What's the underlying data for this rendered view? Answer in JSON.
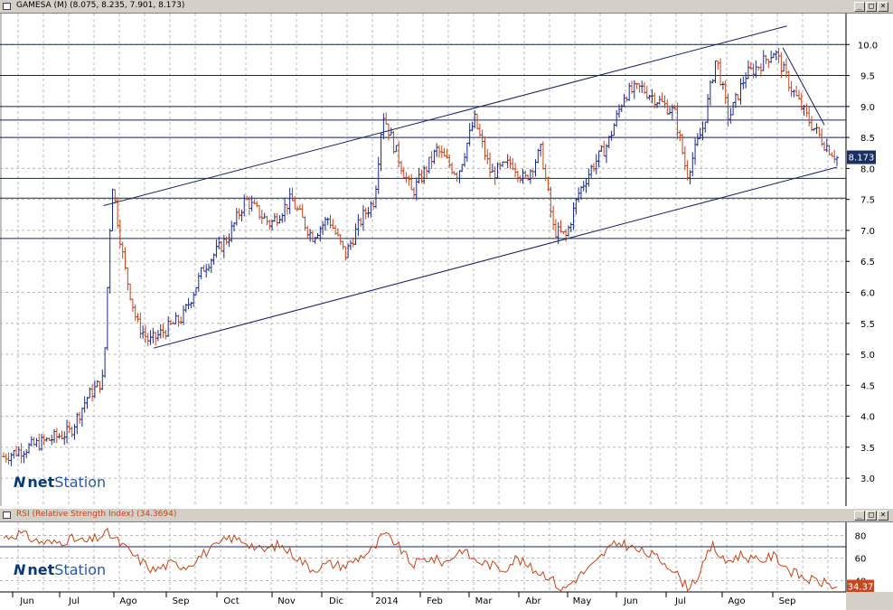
{
  "price_panel": {
    "title": "GAMESA (M) (8.075, 8.235, 7.901, 8.173)",
    "last_value_label": "8.173",
    "logo": {
      "brand_bold": "net",
      "brand_rest": "Station"
    }
  },
  "rsi_panel": {
    "title": "RSI (Relative Strength Index) (34.3694)",
    "last_value_label": "34.37",
    "logo": {
      "brand_bold": "net",
      "brand_rest": "Station"
    }
  },
  "window_buttons": {
    "minimize": "_",
    "restore": "□",
    "close": "×"
  },
  "colors": {
    "grid": "#b8b8b8",
    "bar_up": "#1a2a8a",
    "bar_down": "#c0441a",
    "hline": "#1a2060",
    "trendline": "#1a2060",
    "rsi_line": "#c0441a",
    "rsi_badge": "#c8481e",
    "price_badge": "#1a3060",
    "titlebar": "#d4d0c8"
  },
  "chart_data": [
    {
      "type": "bar",
      "subtype": "ohlc",
      "title": "GAMESA (M) (8.075, 8.235, 7.901, 8.173)",
      "x_ticks": [
        "Jun",
        "Jul",
        "Ago",
        "Sep",
        "Oct",
        "Nov",
        "Dic",
        "2014",
        "Feb",
        "Mar",
        "Abr",
        "May",
        "Jun",
        "Jul",
        "Ago",
        "Sep"
      ],
      "y_ticks": [
        "3.0",
        "3.5",
        "4.0",
        "4.5",
        "5.0",
        "5.5",
        "6.0",
        "6.5",
        "7.0",
        "7.5",
        "8.0",
        "8.5",
        "9.0",
        "9.5",
        "10.0"
      ],
      "ylim": [
        2.55,
        10.5
      ],
      "grid": true,
      "last": {
        "open": 8.075,
        "high": 8.235,
        "low": 7.901,
        "close": 8.173
      },
      "series_points": [
        {
          "t": 0,
          "v": 3.35
        },
        {
          "t": 0.05,
          "v": 3.6
        },
        {
          "t": 0.08,
          "v": 3.75
        },
        {
          "t": 0.1,
          "v": 4.3
        },
        {
          "t": 0.12,
          "v": 4.6
        },
        {
          "t": 0.13,
          "v": 7.8
        },
        {
          "t": 0.145,
          "v": 6.4
        },
        {
          "t": 0.16,
          "v": 5.5
        },
        {
          "t": 0.175,
          "v": 5.2
        },
        {
          "t": 0.215,
          "v": 5.6
        },
        {
          "t": 0.24,
          "v": 6.4
        },
        {
          "t": 0.27,
          "v": 6.9
        },
        {
          "t": 0.29,
          "v": 7.5
        },
        {
          "t": 0.32,
          "v": 7.1
        },
        {
          "t": 0.345,
          "v": 7.5
        },
        {
          "t": 0.37,
          "v": 6.9
        },
        {
          "t": 0.39,
          "v": 7.2
        },
        {
          "t": 0.41,
          "v": 6.6
        },
        {
          "t": 0.43,
          "v": 7.2
        },
        {
          "t": 0.445,
          "v": 7.5
        },
        {
          "t": 0.455,
          "v": 8.9
        },
        {
          "t": 0.47,
          "v": 8.3
        },
        {
          "t": 0.49,
          "v": 7.6
        },
        {
          "t": 0.52,
          "v": 8.3
        },
        {
          "t": 0.545,
          "v": 7.9
        },
        {
          "t": 0.565,
          "v": 8.8
        },
        {
          "t": 0.585,
          "v": 7.9
        },
        {
          "t": 0.61,
          "v": 8.1
        },
        {
          "t": 0.625,
          "v": 7.8
        },
        {
          "t": 0.645,
          "v": 8.3
        },
        {
          "t": 0.66,
          "v": 7.0
        },
        {
          "t": 0.675,
          "v": 6.9
        },
        {
          "t": 0.69,
          "v": 7.6
        },
        {
          "t": 0.705,
          "v": 8.0
        },
        {
          "t": 0.725,
          "v": 8.4
        },
        {
          "t": 0.745,
          "v": 9.2
        },
        {
          "t": 0.765,
          "v": 9.3
        },
        {
          "t": 0.785,
          "v": 9.1
        },
        {
          "t": 0.805,
          "v": 8.9
        },
        {
          "t": 0.82,
          "v": 7.9
        },
        {
          "t": 0.84,
          "v": 8.7
        },
        {
          "t": 0.855,
          "v": 9.8
        },
        {
          "t": 0.87,
          "v": 8.8
        },
        {
          "t": 0.89,
          "v": 9.5
        },
        {
          "t": 0.91,
          "v": 9.7
        },
        {
          "t": 0.925,
          "v": 9.9
        },
        {
          "t": 0.945,
          "v": 9.3
        },
        {
          "t": 0.965,
          "v": 8.8
        },
        {
          "t": 0.985,
          "v": 8.4
        },
        {
          "t": 1.0,
          "v": 8.173
        }
      ],
      "horizontal_levels": [
        10.0,
        9.5,
        9.0,
        8.78,
        8.5,
        7.84,
        7.52,
        6.87
      ],
      "trendlines": [
        {
          "from": [
            0.12,
            7.4
          ],
          "to": [
            0.94,
            10.3
          ]
        },
        {
          "from": [
            0.18,
            5.1
          ],
          "to": [
            1.0,
            8.02
          ]
        },
        {
          "from": [
            0.935,
            9.95
          ],
          "to": [
            0.985,
            8.7
          ]
        }
      ]
    },
    {
      "type": "line",
      "title": "RSI (Relative Strength Index) (34.3694)",
      "y_ticks": [
        "40",
        "60",
        "80"
      ],
      "ylim": [
        30,
        90
      ],
      "grid": true,
      "last": 34.37,
      "horizontal_levels": [
        70,
        30
      ],
      "series_points": [
        {
          "t": 0,
          "v": 78
        },
        {
          "t": 0.02,
          "v": 82
        },
        {
          "t": 0.04,
          "v": 75
        },
        {
          "t": 0.06,
          "v": 73
        },
        {
          "t": 0.08,
          "v": 77
        },
        {
          "t": 0.1,
          "v": 74
        },
        {
          "t": 0.125,
          "v": 82
        },
        {
          "t": 0.14,
          "v": 73
        },
        {
          "t": 0.16,
          "v": 60
        },
        {
          "t": 0.18,
          "v": 49
        },
        {
          "t": 0.2,
          "v": 55
        },
        {
          "t": 0.22,
          "v": 53
        },
        {
          "t": 0.24,
          "v": 64
        },
        {
          "t": 0.255,
          "v": 70
        },
        {
          "t": 0.27,
          "v": 78
        },
        {
          "t": 0.29,
          "v": 75
        },
        {
          "t": 0.31,
          "v": 66
        },
        {
          "t": 0.33,
          "v": 72
        },
        {
          "t": 0.35,
          "v": 62
        },
        {
          "t": 0.37,
          "v": 50
        },
        {
          "t": 0.39,
          "v": 55
        },
        {
          "t": 0.41,
          "v": 53
        },
        {
          "t": 0.43,
          "v": 62
        },
        {
          "t": 0.445,
          "v": 68
        },
        {
          "t": 0.455,
          "v": 81
        },
        {
          "t": 0.47,
          "v": 74
        },
        {
          "t": 0.49,
          "v": 54
        },
        {
          "t": 0.51,
          "v": 60
        },
        {
          "t": 0.53,
          "v": 56
        },
        {
          "t": 0.55,
          "v": 68
        },
        {
          "t": 0.565,
          "v": 58
        },
        {
          "t": 0.585,
          "v": 54
        },
        {
          "t": 0.6,
          "v": 50
        },
        {
          "t": 0.615,
          "v": 60
        },
        {
          "t": 0.635,
          "v": 50
        },
        {
          "t": 0.655,
          "v": 44
        },
        {
          "t": 0.67,
          "v": 31
        },
        {
          "t": 0.69,
          "v": 44
        },
        {
          "t": 0.71,
          "v": 55
        },
        {
          "t": 0.725,
          "v": 68
        },
        {
          "t": 0.74,
          "v": 74
        },
        {
          "t": 0.76,
          "v": 67
        },
        {
          "t": 0.78,
          "v": 62
        },
        {
          "t": 0.8,
          "v": 53
        },
        {
          "t": 0.82,
          "v": 34
        },
        {
          "t": 0.835,
          "v": 45
        },
        {
          "t": 0.85,
          "v": 72
        },
        {
          "t": 0.865,
          "v": 56
        },
        {
          "t": 0.885,
          "v": 63
        },
        {
          "t": 0.905,
          "v": 57
        },
        {
          "t": 0.925,
          "v": 62
        },
        {
          "t": 0.945,
          "v": 48
        },
        {
          "t": 0.965,
          "v": 41
        },
        {
          "t": 0.985,
          "v": 38
        },
        {
          "t": 1.0,
          "v": 34.37
        }
      ]
    }
  ]
}
